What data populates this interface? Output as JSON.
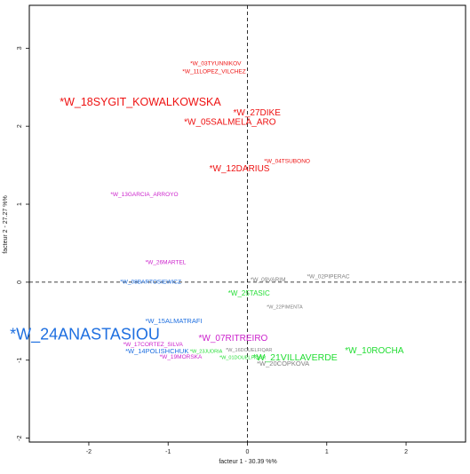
{
  "chart_data": {
    "type": "scatter",
    "xlabel": "facteur  1 - 30.39 %%",
    "ylabel": "facteur  2 - 27.27 %%",
    "xlim": [
      -2.75,
      2.75
    ],
    "ylim": [
      -2.05,
      3.55
    ],
    "x_ticks": [
      -2,
      -1,
      0,
      1,
      2
    ],
    "y_ticks": [
      -2,
      -1,
      0,
      1,
      2,
      3
    ],
    "x_tick_labels": [
      "-2",
      "-1",
      "0",
      "1",
      "2"
    ],
    "y_tick_labels": [
      "-2",
      "-1",
      "0",
      "1",
      "2",
      "3"
    ],
    "reference_lines": {
      "x": 0,
      "y": 0,
      "style": "dashed"
    },
    "grid": false,
    "legend": "none",
    "colors": {
      "red": "#ee1111",
      "magenta": "#cc22cc",
      "blue": "#1e6fe0",
      "green": "#22dd33",
      "gray": "#808080"
    },
    "points": [
      {
        "label": "*W_03TYUNNIKOV",
        "x": -0.4,
        "y": 2.8,
        "color": "red",
        "size": 6.5
      },
      {
        "label": "*W_11LOPEZ_VILCHEZ",
        "x": -0.42,
        "y": 2.7,
        "color": "red",
        "size": 6.5
      },
      {
        "label": "*W_18SYGIT_KOWALKOWSKA",
        "x": -1.35,
        "y": 2.3,
        "color": "red",
        "size": 12.5
      },
      {
        "label": "*W_27DIKE",
        "x": 0.12,
        "y": 2.17,
        "color": "red",
        "size": 10
      },
      {
        "label": "*W_05SALMELA_ARO",
        "x": -0.22,
        "y": 2.05,
        "color": "red",
        "size": 10
      },
      {
        "label": "*W_04TSUBONO",
        "x": 0.5,
        "y": 1.55,
        "color": "red",
        "size": 6.5
      },
      {
        "label": "*W_12DARIUS",
        "x": -0.1,
        "y": 1.45,
        "color": "red",
        "size": 10
      },
      {
        "label": "*W_13GARCIA_ARROYO",
        "x": -1.3,
        "y": 1.12,
        "color": "magenta",
        "size": 6.5
      },
      {
        "label": "*W_26MARTEL",
        "x": -1.03,
        "y": 0.25,
        "color": "magenta",
        "size": 6.5
      },
      {
        "label": "*W_08BARTOSIEWICZ",
        "x": -1.22,
        "y": 0.0,
        "color": "blue",
        "size": 6.5
      },
      {
        "label": "*W_09VARIM",
        "x": 0.26,
        "y": 0.03,
        "color": "gray",
        "size": 6.5
      },
      {
        "label": "*W_02PIPERAC",
        "x": 1.02,
        "y": 0.07,
        "color": "gray",
        "size": 6.5
      },
      {
        "label": "*W_25TASIC",
        "x": 0.02,
        "y": -0.15,
        "color": "green",
        "size": 8
      },
      {
        "label": "*W_22PIMENTA",
        "x": 0.47,
        "y": -0.32,
        "color": "gray",
        "size": 5.5
      },
      {
        "label": "*W_15ALMATRAFI",
        "x": -0.93,
        "y": -0.5,
        "color": "blue",
        "size": 7.5
      },
      {
        "label": "*W_24ANASTASIOU",
        "x": -2.05,
        "y": -0.68,
        "color": "blue",
        "size": 18
      },
      {
        "label": "*W_07RITREIRO",
        "x": -0.18,
        "y": -0.72,
        "color": "magenta",
        "size": 10
      },
      {
        "label": "*W_17CORTEZ_SILVA",
        "x": -1.19,
        "y": -0.8,
        "color": "magenta",
        "size": 6.5
      },
      {
        "label": "*W_14POLISHCHUK",
        "x": -1.14,
        "y": -0.89,
        "color": "blue",
        "size": 7.5
      },
      {
        "label": "*W_23JUDRIA",
        "x": -0.52,
        "y": -0.89,
        "color": "green",
        "size": 5.5
      },
      {
        "label": "*W_19MORSKA",
        "x": -0.84,
        "y": -0.96,
        "color": "magenta",
        "size": 6.5
      },
      {
        "label": "*W_16DOUELFIQAR",
        "x": 0.02,
        "y": -0.87,
        "color": "gray",
        "size": 5.5
      },
      {
        "label": "*W_01DOUELFIQAR",
        "x": -0.06,
        "y": -0.97,
        "color": "green",
        "size": 5.5
      },
      {
        "label": "*W_21VILLAVERDE",
        "x": 0.6,
        "y": -0.97,
        "color": "green",
        "size": 10.5
      },
      {
        "label": "*W_20COPKOVA",
        "x": 0.45,
        "y": -1.05,
        "color": "gray",
        "size": 7.5
      },
      {
        "label": "*W_10ROCHA",
        "x": 1.6,
        "y": -0.88,
        "color": "green",
        "size": 10
      }
    ]
  }
}
